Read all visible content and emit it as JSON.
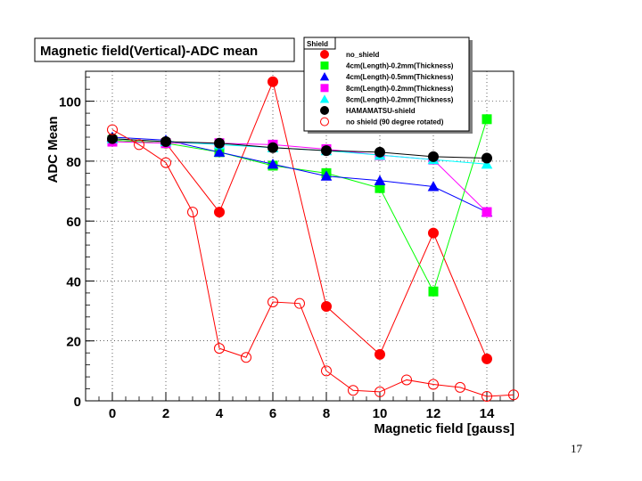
{
  "page_number": "17",
  "chart_data": {
    "type": "line",
    "title": "Magnetic field(Vertical)-ADC mean",
    "xlabel": "Magnetic field [gauss]",
    "ylabel": "ADC Mean",
    "xlim": [
      -1,
      15
    ],
    "ylim": [
      0,
      110
    ],
    "x_ticks": [
      "0",
      "2",
      "4",
      "6",
      "8",
      "10",
      "12",
      "14"
    ],
    "y_ticks": [
      "0",
      "20",
      "40",
      "60",
      "80",
      "100"
    ],
    "grid": true,
    "legend_title": "Shield",
    "legend_position": "top-right",
    "series": [
      {
        "name": "no_shield",
        "marker": "filled-circle",
        "color": "#ff0000",
        "x": [
          0,
          2,
          4,
          6,
          8,
          10,
          12,
          14
        ],
        "y": [
          87,
          86,
          63,
          106.5,
          31.5,
          15.5,
          56,
          14
        ]
      },
      {
        "name": "4cm(Length)-0.2mm(Thickness)",
        "marker": "filled-square",
        "color": "#00ff00",
        "x": [
          0,
          2,
          4,
          6,
          8,
          10,
          12,
          14
        ],
        "y": [
          87,
          86,
          83,
          78.5,
          76,
          71,
          36.5,
          94
        ]
      },
      {
        "name": "4cm(Length)-0.5mm(Thickness)",
        "marker": "filled-triangle",
        "color": "#0000ff",
        "x": [
          0,
          2,
          4,
          6,
          8,
          10,
          12,
          14
        ],
        "y": [
          88,
          87,
          83,
          79,
          75,
          73.5,
          71.5,
          63
        ]
      },
      {
        "name": "8cm(Length)-0.2mm(Thickness)",
        "marker": "filled-square",
        "color": "#ff00ff",
        "x": [
          0,
          2,
          4,
          6,
          8,
          10,
          12,
          14
        ],
        "y": [
          86.5,
          86,
          86,
          85.5,
          84,
          82,
          80.5,
          63
        ]
      },
      {
        "name": "8cm(Length)-0.2mm(Thickness)",
        "marker": "filled-triangle",
        "color": "#00ffff",
        "x": [
          0,
          2,
          4,
          6,
          8,
          10,
          12,
          14
        ],
        "y": [
          87.5,
          86.5,
          85.5,
          84.5,
          83.5,
          82,
          80.5,
          79
        ]
      },
      {
        "name": "HAMAMATSU-shield",
        "marker": "filled-circle",
        "color": "#000000",
        "x": [
          0,
          2,
          4,
          6,
          8,
          10,
          12,
          14
        ],
        "y": [
          87.5,
          86.5,
          86,
          84.5,
          83.5,
          83,
          81.5,
          81
        ]
      },
      {
        "name": "no shield (90 degree rotated)",
        "marker": "open-circle",
        "color": "#ff0000",
        "x": [
          0,
          1,
          2,
          3,
          4,
          5,
          6,
          7,
          8,
          9,
          10,
          11,
          12,
          13,
          14,
          15
        ],
        "y": [
          90.5,
          85.5,
          79.5,
          63,
          17.5,
          14.5,
          33,
          32.5,
          10,
          3.5,
          3,
          7,
          5.5,
          4.5,
          1.5,
          2
        ]
      }
    ]
  }
}
